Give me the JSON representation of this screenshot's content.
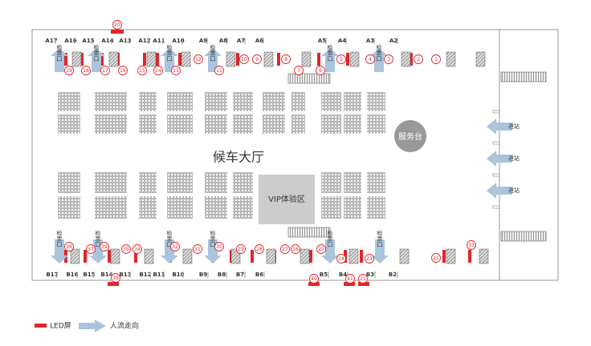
{
  "hall_label": "候车大厅",
  "service_desk": "服务台",
  "vip_area": "VIP体验区",
  "top_gates": [
    "A17",
    "A16",
    "A15",
    "A14",
    "A13",
    "A12",
    "A11",
    "A10",
    "A9",
    "A8",
    "A7",
    "A6",
    "A5",
    "A4",
    "A3",
    "A2"
  ],
  "bottom_gates": [
    "B17",
    "B16",
    "B15",
    "B14",
    "B13",
    "B12",
    "B11",
    "B10",
    "B9",
    "B8",
    "B7",
    "B6",
    "B5",
    "B4",
    "B3",
    "B2"
  ],
  "markers": [
    1,
    2,
    3,
    4,
    5,
    6,
    7,
    8,
    9,
    10,
    11,
    12,
    13,
    14,
    15,
    16,
    17,
    18,
    19,
    20,
    21,
    22,
    23,
    24,
    25,
    26,
    27,
    28,
    29,
    30,
    31,
    32,
    33,
    34,
    35,
    36,
    37,
    38,
    39,
    40,
    41
  ],
  "ticket_checks_top": [
    "检票口",
    "检票口",
    "检票口",
    "检票口",
    "检票口",
    "检票口"
  ],
  "ticket_checks_bottom": [
    "检票口",
    "检票口",
    "检票口",
    "检票口",
    "检票口",
    "检票口"
  ],
  "entrances": [
    "进站",
    "进站",
    "进站"
  ],
  "legend": {
    "led": "LED屏",
    "flow": "人流走向"
  }
}
